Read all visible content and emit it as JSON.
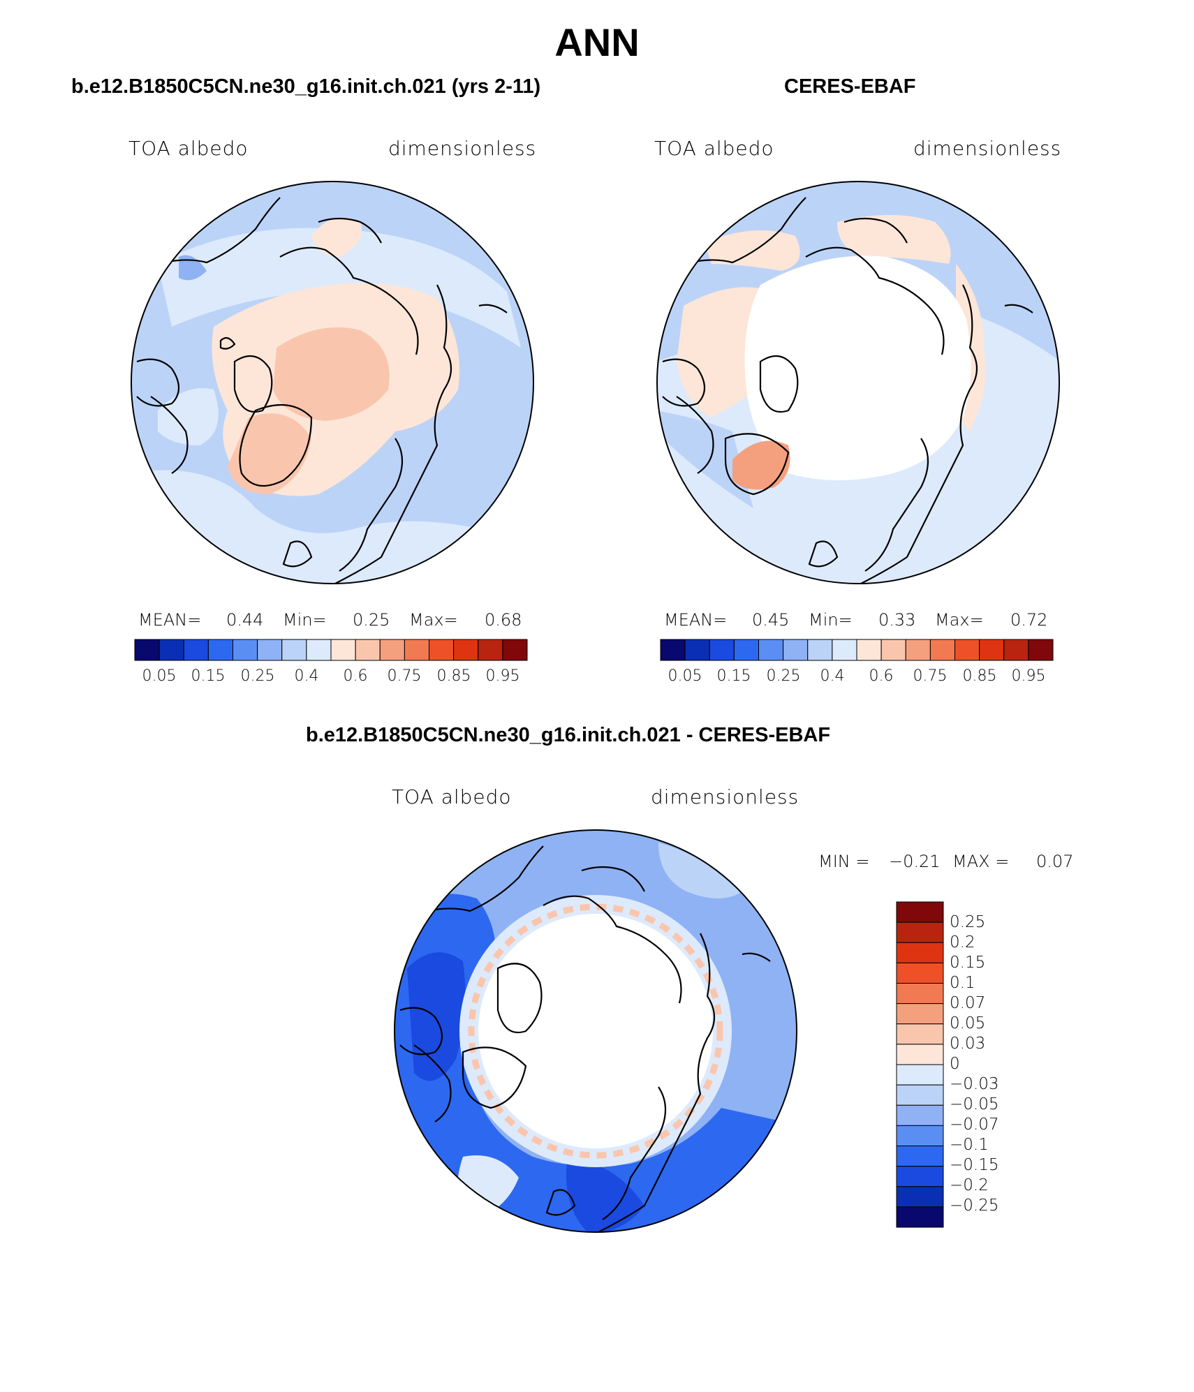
{
  "figure": {
    "title": "ANN"
  },
  "panels": [
    {
      "title": "b.e12.B1850C5CN.ne30_g16.init.ch.021 (yrs 2-11)",
      "left_label": "TOA albedo",
      "right_label": "dimensionless",
      "stats": {
        "mean_label": "MEAN=",
        "mean": "0.44",
        "min_label": "Min=",
        "min": "0.25",
        "max_label": "Max=",
        "max": "0.68"
      }
    },
    {
      "title": "CERES-EBAF",
      "left_label": "TOA albedo",
      "right_label": "dimensionless",
      "stats": {
        "mean_label": "MEAN=",
        "mean": "0.45",
        "min_label": "Min=",
        "min": "0.33",
        "max_label": "Max=",
        "max": "0.72"
      }
    },
    {
      "title": "b.e12.B1850C5CN.ne30_g16.init.ch.021 - CERES-EBAF",
      "left_label": "TOA albedo",
      "right_label": "dimensionless",
      "stats": {
        "min_label": "MIN =",
        "min": "−0.21",
        "max_label": "MAX =",
        "max": "0.07"
      }
    }
  ],
  "colorbar_horizontal": {
    "colors": [
      "#08086e",
      "#0a2fb5",
      "#1a4ae0",
      "#2d68f0",
      "#5b8ef2",
      "#8fb2f5",
      "#bcd3f8",
      "#ddeafb",
      "#fde6d8",
      "#f9c6ad",
      "#f4a07f",
      "#f27a52",
      "#ee5128",
      "#df3412",
      "#b82410",
      "#80080a"
    ],
    "tick_labels": [
      "0.05",
      "0.15",
      "0.25",
      "0.4",
      "0.6",
      "0.75",
      "0.85",
      "0.95"
    ]
  },
  "colorbar_vertical": {
    "colors_top_to_bottom": [
      "#80080a",
      "#b82410",
      "#df3412",
      "#ee5128",
      "#f27a52",
      "#f4a07f",
      "#f9c6ad",
      "#fde6d8",
      "#ddeafb",
      "#bcd3f8",
      "#8fb2f5",
      "#5b8ef2",
      "#2d68f0",
      "#1a4ae0",
      "#0a2fb5",
      "#08086e"
    ],
    "tick_labels": [
      "0.25",
      "0.2",
      "0.15",
      "0.1",
      "0.07",
      "0.05",
      "0.03",
      "0",
      "−0.03",
      "−0.05",
      "−0.07",
      "−0.1",
      "−0.15",
      "−0.2",
      "−0.25"
    ]
  },
  "map_colors": {
    "ocean_blue": "#bcd3f8",
    "pale_blue": "#ddeafb",
    "mid_blue": "#8fb2f5",
    "deep_blue": "#2d68f0",
    "darker_blue": "#1a4ae0",
    "pale_orange": "#fde6d8",
    "light_orange": "#f9c6ad",
    "mid_orange": "#f4a07f",
    "white": "#ffffff"
  }
}
